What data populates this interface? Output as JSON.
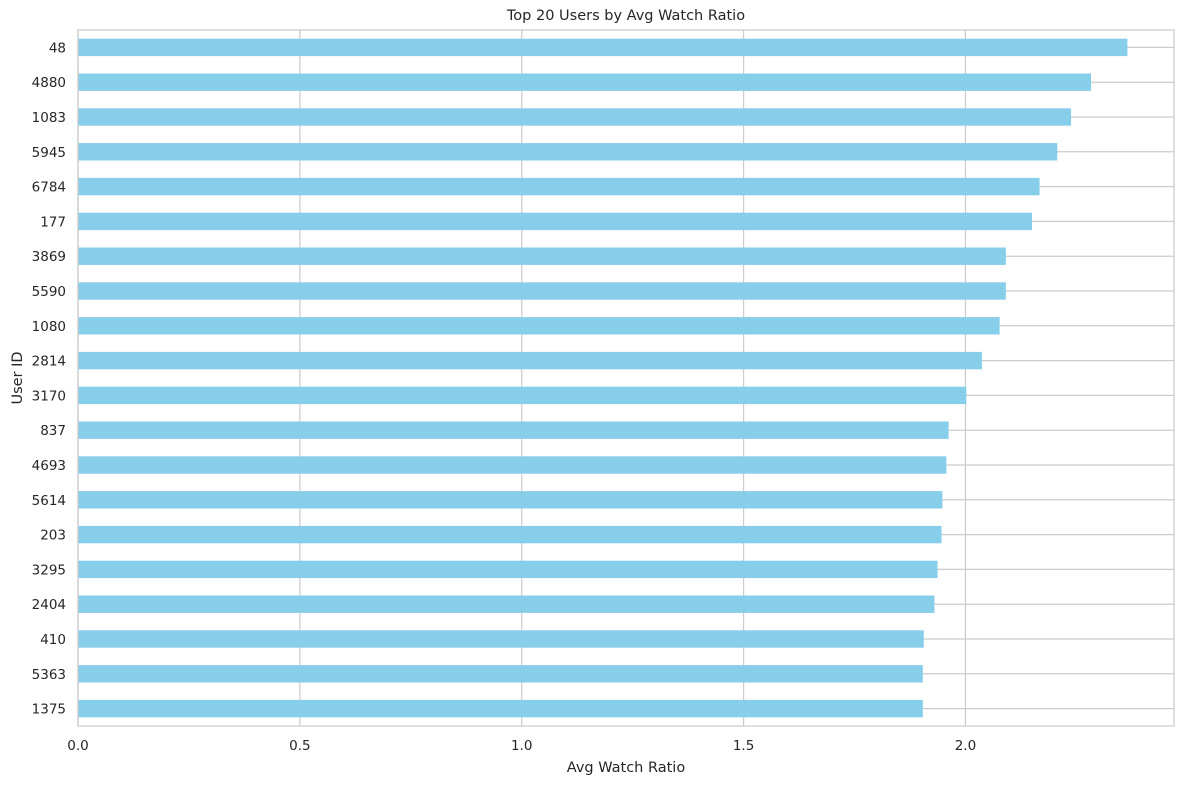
{
  "chart_data": {
    "type": "bar",
    "orientation": "horizontal",
    "title": "Top 20 Users by Avg Watch Ratio",
    "xlabel": "Avg Watch Ratio",
    "ylabel": "User ID",
    "xlim": [
      0,
      2.47
    ],
    "xticks": [
      0.0,
      0.5,
      1.0,
      1.5,
      2.0
    ],
    "xtick_labels": [
      "0.0",
      "0.5",
      "1.0",
      "1.5",
      "2.0"
    ],
    "grid": true,
    "legend": "none",
    "bar_color": "#87ceeb",
    "categories": [
      "48",
      "4880",
      "1083",
      "5945",
      "6784",
      "177",
      "3869",
      "5590",
      "1080",
      "2814",
      "3170",
      "837",
      "4693",
      "5614",
      "203",
      "3295",
      "2404",
      "410",
      "5363",
      "1375"
    ],
    "values": [
      2.365,
      2.283,
      2.238,
      2.207,
      2.167,
      2.15,
      2.091,
      2.091,
      2.077,
      2.037,
      2.002,
      1.962,
      1.957,
      1.948,
      1.946,
      1.937,
      1.93,
      1.906,
      1.904,
      1.904
    ]
  }
}
